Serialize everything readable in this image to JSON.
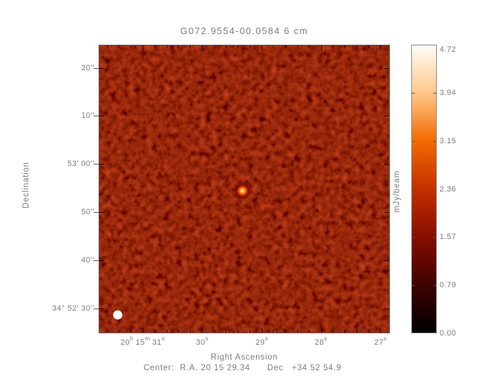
{
  "figure": {
    "title": "G072.9554-00.0584 6 cm",
    "xlabel": "Right Ascension",
    "ylabel": "Declination",
    "colorbar_label": "mJy/beam",
    "center_line": "Center:  R.A. 20 15 29.34      Dec   +34 52 54.9"
  },
  "y_ticks": [
    "20''",
    "10''",
    "53' 00''",
    "50''",
    "40''",
    "34° 52' 30''"
  ],
  "x_ticks": [
    {
      "segs": [
        {
          "t": "20",
          "sup": "h"
        },
        {
          "t": " 15",
          "sup": "m"
        },
        {
          "t": " 31",
          "sup": "s"
        }
      ]
    },
    {
      "segs": [
        {
          "t": "30",
          "sup": "s"
        }
      ]
    },
    {
      "segs": [
        {
          "t": "29",
          "sup": "s"
        }
      ]
    },
    {
      "segs": [
        {
          "t": "28",
          "sup": "s"
        }
      ]
    },
    {
      "segs": [
        {
          "t": "27",
          "sup": "s"
        }
      ]
    }
  ],
  "colorbar": {
    "labels": [
      "4.72",
      "3.94",
      "3.15",
      "2.36",
      "1.57",
      "0.79",
      "0.00"
    ]
  },
  "colors": {
    "text": "#7b7b7b",
    "noise_dark": "#1a0000",
    "noise_mid": "#4d0000",
    "noise_bright": "#8e0800",
    "source_core": "#ffefc8",
    "beam_marker": "#ffffff",
    "colorbar_stops_bottom_to_top": [
      "#000000",
      "#3d0200",
      "#870e00",
      "#c43000",
      "#f26900",
      "#fec78a",
      "#fffdf8"
    ]
  },
  "chart_data": {
    "type": "heatmap",
    "title": "G072.9554-00.0584 6 cm",
    "xlabel": "Right Ascension",
    "ylabel": "Declination",
    "x_tick_labels": [
      "20h 15m 31s",
      "30s",
      "29s",
      "28s",
      "27s"
    ],
    "x_tick_ra_seconds": [
      31,
      30,
      29,
      28,
      27
    ],
    "x_axis_direction": "RA increases to the left",
    "y_tick_labels": [
      "20''",
      "10''",
      "53' 00''",
      "50''",
      "40''",
      "34° 52' 30''"
    ],
    "y_tick_declinations": [
      "+34 53 20",
      "+34 53 10",
      "+34 53 00",
      "+34 52 50",
      "+34 52 40",
      "+34 52 30"
    ],
    "colorbar": {
      "label": "mJy/beam",
      "ticks": [
        0.0,
        0.79,
        1.57,
        2.36,
        3.15,
        3.94,
        4.72
      ],
      "range": [
        0,
        4.72
      ],
      "colormap": "heat: black - dark red - red - orange - peach - white"
    },
    "field_center": {
      "ra": "20 15 29.34",
      "dec": "+34 52 54.9"
    },
    "features": [
      {
        "name": "point-source",
        "approx_ra": "20 15 29.3",
        "approx_dec": "+34 52 55",
        "peak_mJy_beam": 4.7,
        "location": "center of field"
      },
      {
        "name": "beam-ellipse",
        "location": "bottom-left corner",
        "appearance": "filled white circle, ~4 arcsec diameter"
      }
    ],
    "background": "red noise field, approx 0 to 1.2 mJy/beam",
    "grid": false,
    "legend": false
  }
}
